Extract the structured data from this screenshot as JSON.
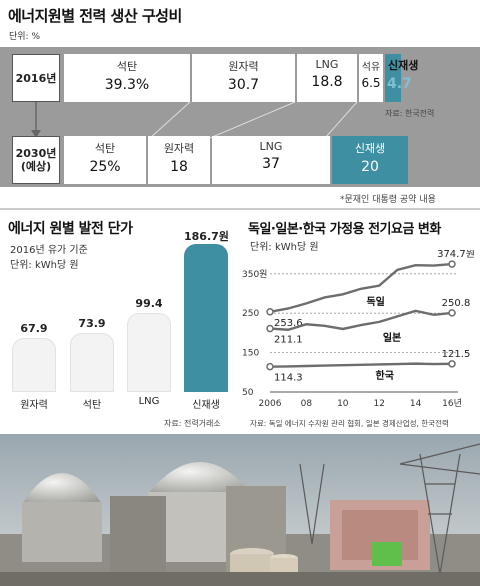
{
  "section1": {
    "title": "에너지원별 전력 생산 구성비",
    "unit": "단위: %",
    "source": "자료: 한국전력",
    "footnote": "*문재인 대통령 공약 내용",
    "rows": [
      {
        "year": "2016년",
        "segments": [
          {
            "name": "석탄",
            "value": "39.3%"
          },
          {
            "name": "원자력",
            "value": "30.7"
          },
          {
            "name": "LNG",
            "value": "18.8"
          },
          {
            "name": "석유",
            "value": "6.5"
          },
          {
            "name": "신재생",
            "value": "4.7"
          }
        ]
      },
      {
        "year": "2030년",
        "year_note": "(예상)",
        "segments": [
          {
            "name": "석탄",
            "value": "25%"
          },
          {
            "name": "원자력",
            "value": "18"
          },
          {
            "name": "LNG",
            "value": "37"
          },
          {
            "name": "신재생",
            "value": "20"
          }
        ]
      }
    ]
  },
  "section2": {
    "title": "에너지 원별 발전 단가",
    "subtitle": "2016년 유가 기준",
    "unit": "단위: kWh당 원",
    "source": "자료: 전력거래소"
  },
  "section3": {
    "title": "독일·일본·한국 가정용 전기요금 변화",
    "unit": "단위: kWh당 원",
    "source": "자료: 독일 에너지 수자원 관리 협회, 일본 경제산업성, 한국전력"
  },
  "colors": {
    "teal": "#3f8fa3",
    "teal_light": "#6fb3c4",
    "bar_light": "#f3f3f3",
    "band_gray": "#9b9b9b"
  },
  "chart_data": [
    {
      "type": "bar",
      "title": "에너지원별 전력 생산 구성비",
      "categories": [
        "석탄",
        "원자력",
        "LNG",
        "석유",
        "신재생"
      ],
      "series": [
        {
          "name": "2016년",
          "values": [
            39.3,
            30.7,
            18.8,
            6.5,
            4.7
          ]
        },
        {
          "name": "2030년 (예상)",
          "values": [
            25,
            18,
            37,
            0,
            20
          ]
        }
      ],
      "ylabel": "단위: %"
    },
    {
      "type": "bar",
      "title": "에너지 원별 발전 단가",
      "subtitle": "2016년 유가 기준",
      "categories": [
        "원자력",
        "석탄",
        "LNG",
        "신재생"
      ],
      "values": [
        67.9,
        73.9,
        99.4,
        186.7
      ],
      "value_labels": [
        "67.9",
        "73.9",
        "99.4",
        "186.7원"
      ],
      "ylabel": "단위: kWh당 원",
      "ylim": [
        0,
        190
      ]
    },
    {
      "type": "line",
      "title": "독일·일본·한국 가정용 전기요금 변화",
      "x": [
        2006,
        2007,
        2008,
        2009,
        2010,
        2011,
        2012,
        2013,
        2014,
        2015,
        2016
      ],
      "xtick_labels": [
        "2006",
        "08",
        "10",
        "12",
        "14",
        "16년"
      ],
      "ytick_labels": [
        "50",
        "150",
        "250",
        "350원"
      ],
      "ylim": [
        50,
        380
      ],
      "series": [
        {
          "name": "독일",
          "values": [
            253.6,
            262,
            275,
            290,
            298,
            312,
            320,
            360,
            372,
            371,
            374.7
          ],
          "end_labels": [
            "253.6",
            "374.7원"
          ]
        },
        {
          "name": "일본",
          "values": [
            211.1,
            208,
            222,
            218,
            210,
            220,
            228,
            242,
            256,
            246,
            250.8
          ],
          "end_labels": [
            "211.1",
            "250.8"
          ]
        },
        {
          "name": "한국",
          "values": [
            114.3,
            115,
            116,
            117,
            118,
            119,
            120,
            121,
            122,
            121,
            121.5
          ],
          "end_labels": [
            "114.3",
            "121.5"
          ]
        }
      ],
      "ylabel": "단위: kWh당 원"
    }
  ]
}
